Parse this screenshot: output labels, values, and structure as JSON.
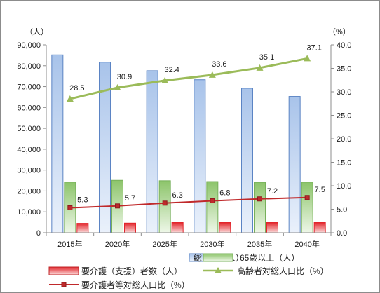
{
  "chart_data": {
    "type": "bar",
    "categories": [
      "2015年",
      "2020年",
      "2025年",
      "2030年",
      "2035年",
      "2040年"
    ],
    "left_axis": {
      "unit": "（人）",
      "ylim": [
        0,
        90000
      ],
      "ticks": [
        "0",
        "10,000",
        "20,000",
        "30,000",
        "40,000",
        "50,000",
        "60,000",
        "70,000",
        "80,000",
        "90,000"
      ]
    },
    "right_axis": {
      "unit": "（%）",
      "ylim": [
        0,
        40
      ],
      "ticks": [
        "0.0",
        "5.0",
        "10.0",
        "15.0",
        "20.0",
        "25.0",
        "30.0",
        "35.0",
        "40.0"
      ]
    },
    "series": [
      {
        "name": "総人口（人）",
        "type": "bar",
        "axis": "left",
        "values": [
          85200,
          81700,
          77600,
          73300,
          69200,
          65300
        ],
        "color": "#5b84c4"
      },
      {
        "name": "65歳以上（人）",
        "type": "bar",
        "axis": "left",
        "values": [
          24200,
          25100,
          24900,
          24500,
          24100,
          24200
        ],
        "color": "#77b05b"
      },
      {
        "name": "要介護（支援）者数（人）",
        "type": "bar",
        "axis": "left",
        "values": [
          4500,
          4600,
          4900,
          4900,
          4900,
          4900
        ],
        "color": "#e2252b"
      },
      {
        "name": "高齢者対総人口比（%）",
        "type": "line",
        "axis": "right",
        "values": [
          28.5,
          30.9,
          32.4,
          33.6,
          35.1,
          37.1
        ],
        "labels": [
          "28.5",
          "30.9",
          "32.4",
          "33.6",
          "35.1",
          "37.1"
        ],
        "color": "#9bbb59"
      },
      {
        "name": "要介護者等対総人口比（%）",
        "type": "line",
        "axis": "right",
        "values": [
          5.3,
          5.7,
          6.3,
          6.8,
          7.2,
          7.5
        ],
        "labels": [
          "5.3",
          "5.7",
          "6.3",
          "6.8",
          "7.2",
          "7.5"
        ],
        "color": "#c0292b"
      }
    ],
    "grid": false,
    "legend": "bottom"
  }
}
